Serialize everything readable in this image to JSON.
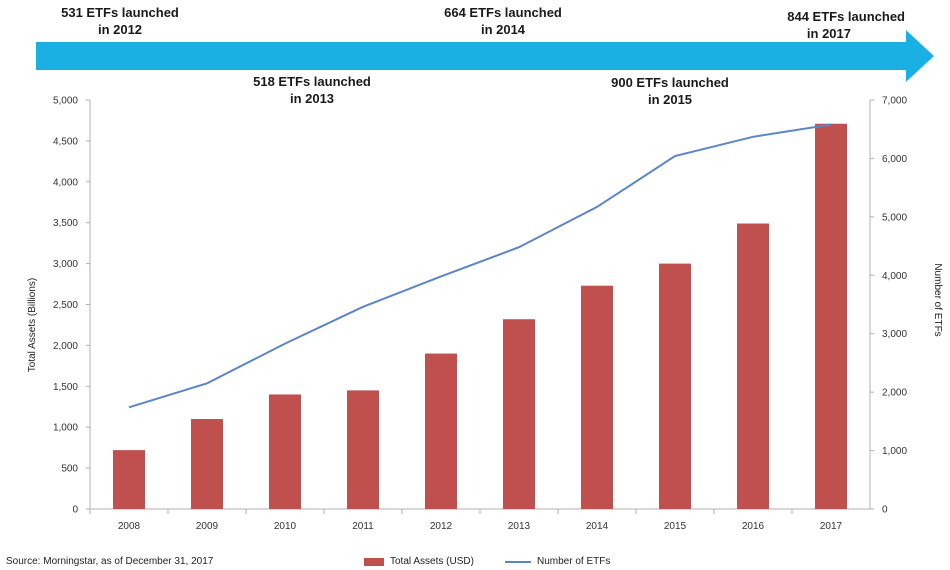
{
  "annotations": [
    {
      "line1": "531 ETFs launched",
      "line2": "in 2012"
    },
    {
      "line1": "664 ETFs launched",
      "line2": "in 2014"
    },
    {
      "line1": "844 ETFs launched",
      "line2": "in 2017"
    },
    {
      "line1": "518 ETFs launched",
      "line2": "in 2013"
    },
    {
      "line1": "900 ETFs launched",
      "line2": "in 2015"
    }
  ],
  "colors": {
    "arrow": "#1ab0e3",
    "bar": "#c0504d",
    "line": "#5b86c5",
    "axis": "#b0b0b0"
  },
  "source": "Source: Morningstar, as of December 31, 2017",
  "legend": {
    "bar_label": "Total Assets (USD)",
    "line_label": "Number of ETFs"
  },
  "chart_data": {
    "type": "bar",
    "categories": [
      "2008",
      "2009",
      "2010",
      "2011",
      "2012",
      "2013",
      "2014",
      "2015",
      "2016",
      "2017"
    ],
    "series": [
      {
        "name": "Total Assets (USD)",
        "type": "bar",
        "axis": "left",
        "values": [
          720,
          1100,
          1400,
          1450,
          1900,
          2320,
          2730,
          3000,
          3490,
          4710
        ]
      },
      {
        "name": "Number of ETFs",
        "type": "line",
        "axis": "right",
        "values": [
          1740,
          2150,
          2830,
          3460,
          3980,
          4480,
          5170,
          6040,
          6370,
          6580
        ]
      }
    ],
    "ylabel": "Total Assets (Billions)",
    "ylabel_right": "Number of ETFs",
    "ylim": [
      0,
      5000
    ],
    "ylim_right": [
      0,
      7000
    ],
    "yticks": [
      "0",
      "500",
      "1,000",
      "1,500",
      "2,000",
      "2,500",
      "3,000",
      "3,500",
      "4,000",
      "4,500",
      "5,000"
    ],
    "yticks_right": [
      "0",
      "1,000",
      "2,000",
      "3,000",
      "4,000",
      "5,000",
      "6,000",
      "7,000"
    ]
  }
}
